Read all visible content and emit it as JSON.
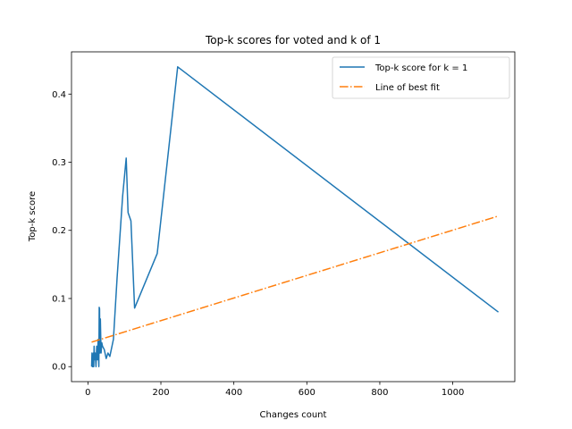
{
  "chart_data": {
    "type": "line",
    "title": "Top-k scores for voted and k of 1",
    "xlabel": "Changes count",
    "ylabel": "Top-k score",
    "xlim": [
      -45,
      1170
    ],
    "ylim": [
      -0.022,
      0.462
    ],
    "xticks": [
      0,
      200,
      400,
      600,
      800,
      1000
    ],
    "yticks": [
      0.0,
      0.1,
      0.2,
      0.3,
      0.4
    ],
    "xtick_labels": [
      "0",
      "200",
      "400",
      "600",
      "800",
      "1000"
    ],
    "ytick_labels": [
      "0.0",
      "0.1",
      "0.2",
      "0.3",
      "0.4"
    ],
    "legend_position": "top-right",
    "series": [
      {
        "name": "Top-k score for k = 1",
        "color": "#1f77b4",
        "style": "solid",
        "x": [
          10,
          11,
          12,
          13,
          14,
          15,
          16,
          17,
          18,
          20,
          22,
          24,
          26,
          28,
          30,
          31,
          32,
          33,
          34,
          36,
          38,
          40,
          45,
          50,
          55,
          60,
          70,
          80,
          95,
          105,
          110,
          118,
          128,
          190,
          246,
          1125
        ],
        "y": [
          0.0,
          0.02,
          0.0,
          0.01,
          0.0,
          0.02,
          0.0,
          0.03,
          0.01,
          0.02,
          0.0,
          0.03,
          0.01,
          0.04,
          0.0,
          0.087,
          0.085,
          0.02,
          0.07,
          0.02,
          0.035,
          0.03,
          0.025,
          0.012,
          0.02,
          0.015,
          0.04,
          0.13,
          0.25,
          0.306,
          0.226,
          0.214,
          0.086,
          0.166,
          0.44,
          0.08
        ]
      },
      {
        "name": "Line of best fit",
        "color": "#ff7f0e",
        "style": "dashdot",
        "x": [
          10,
          1125
        ],
        "y": [
          0.036,
          0.221
        ]
      }
    ]
  }
}
